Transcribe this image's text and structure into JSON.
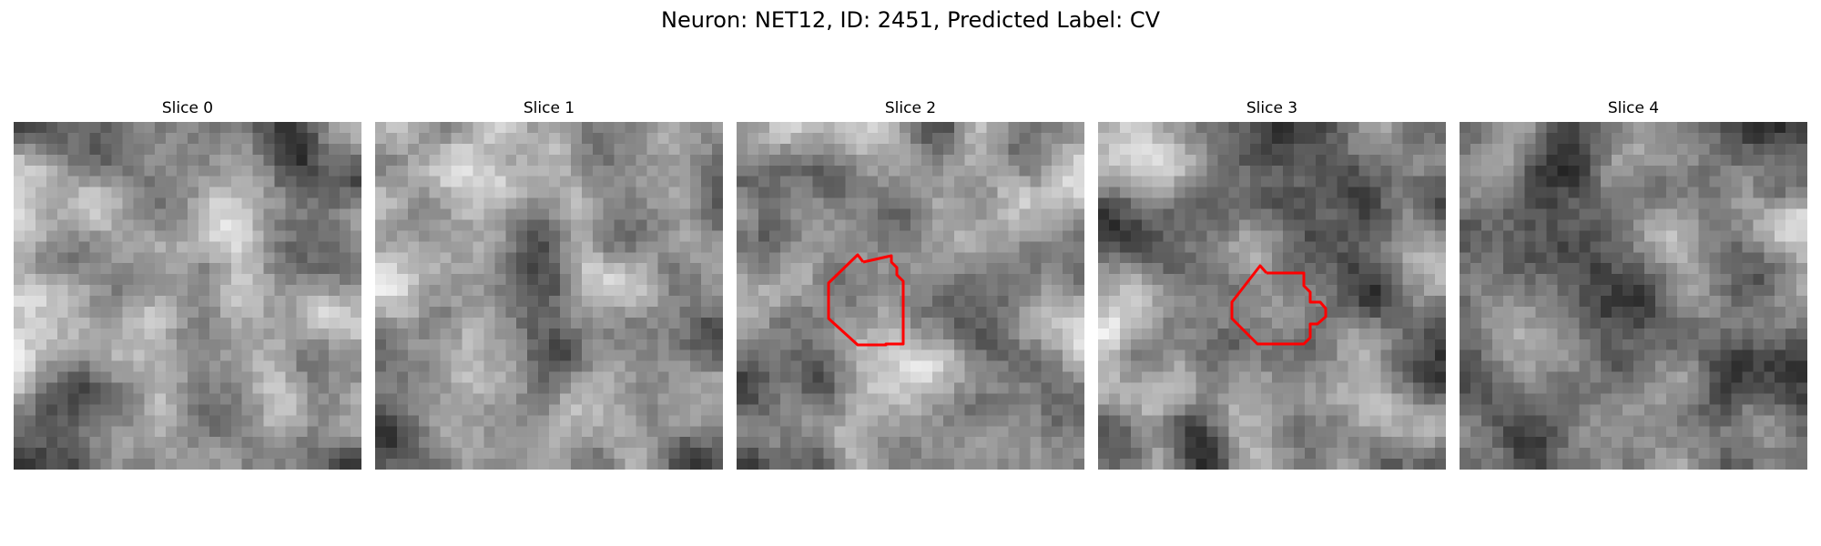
{
  "figure": {
    "title": "Neuron: NET12, ID: 2451, Predicted Label: CV"
  },
  "panels": [
    {
      "title": "Slice 0",
      "has_contour": false
    },
    {
      "title": "Slice 1",
      "has_contour": false
    },
    {
      "title": "Slice 2",
      "has_contour": true
    },
    {
      "title": "Slice 3",
      "has_contour": true
    },
    {
      "title": "Slice 4",
      "has_contour": false
    }
  ],
  "colors": {
    "contour": "#ff0000",
    "image_colormap": "grayscale"
  }
}
